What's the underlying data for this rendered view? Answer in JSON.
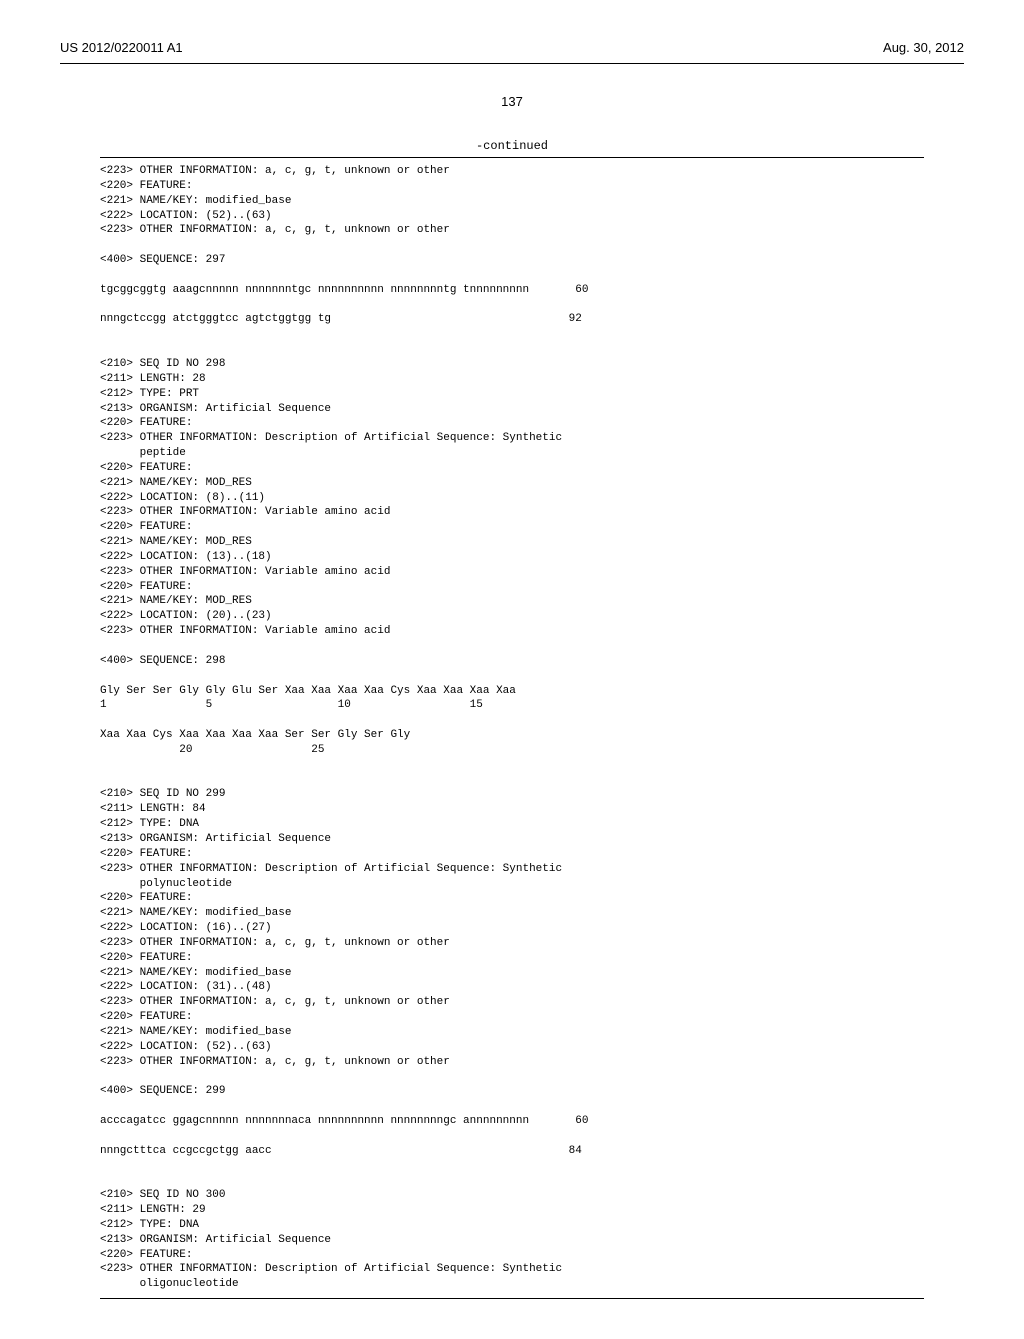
{
  "header": {
    "left": "US 2012/0220011 A1",
    "right": "Aug. 30, 2012"
  },
  "page_number": "137",
  "continued_label": "-continued",
  "sequence_text": "<223> OTHER INFORMATION: a, c, g, t, unknown or other\n<220> FEATURE:\n<221> NAME/KEY: modified_base\n<222> LOCATION: (52)..(63)\n<223> OTHER INFORMATION: a, c, g, t, unknown or other\n\n<400> SEQUENCE: 297\n\ntgcggcggtg aaagcnnnnn nnnnnnntgc nnnnnnnnnn nnnnnnnntg tnnnnnnnnn       60\n\nnnngctccgg atctgggtcc agtctggtgg tg                                    92\n\n\n<210> SEQ ID NO 298\n<211> LENGTH: 28\n<212> TYPE: PRT\n<213> ORGANISM: Artificial Sequence\n<220> FEATURE:\n<223> OTHER INFORMATION: Description of Artificial Sequence: Synthetic\n      peptide\n<220> FEATURE:\n<221> NAME/KEY: MOD_RES\n<222> LOCATION: (8)..(11)\n<223> OTHER INFORMATION: Variable amino acid\n<220> FEATURE:\n<221> NAME/KEY: MOD_RES\n<222> LOCATION: (13)..(18)\n<223> OTHER INFORMATION: Variable amino acid\n<220> FEATURE:\n<221> NAME/KEY: MOD_RES\n<222> LOCATION: (20)..(23)\n<223> OTHER INFORMATION: Variable amino acid\n\n<400> SEQUENCE: 298\n\nGly Ser Ser Gly Gly Glu Ser Xaa Xaa Xaa Xaa Cys Xaa Xaa Xaa Xaa\n1               5                   10                  15\n\nXaa Xaa Cys Xaa Xaa Xaa Xaa Ser Ser Gly Ser Gly\n            20                  25\n\n\n<210> SEQ ID NO 299\n<211> LENGTH: 84\n<212> TYPE: DNA\n<213> ORGANISM: Artificial Sequence\n<220> FEATURE:\n<223> OTHER INFORMATION: Description of Artificial Sequence: Synthetic\n      polynucleotide\n<220> FEATURE:\n<221> NAME/KEY: modified_base\n<222> LOCATION: (16)..(27)\n<223> OTHER INFORMATION: a, c, g, t, unknown or other\n<220> FEATURE:\n<221> NAME/KEY: modified_base\n<222> LOCATION: (31)..(48)\n<223> OTHER INFORMATION: a, c, g, t, unknown or other\n<220> FEATURE:\n<221> NAME/KEY: modified_base\n<222> LOCATION: (52)..(63)\n<223> OTHER INFORMATION: a, c, g, t, unknown or other\n\n<400> SEQUENCE: 299\n\nacccagatcc ggagcnnnnn nnnnnnnaca nnnnnnnnnn nnnnnnnngc annnnnnnnn       60\n\nnnngctttca ccgccgctgg aacc                                             84\n\n\n<210> SEQ ID NO 300\n<211> LENGTH: 29\n<212> TYPE: DNA\n<213> ORGANISM: Artificial Sequence\n<220> FEATURE:\n<223> OTHER INFORMATION: Description of Artificial Sequence: Synthetic\n      oligonucleotide"
}
